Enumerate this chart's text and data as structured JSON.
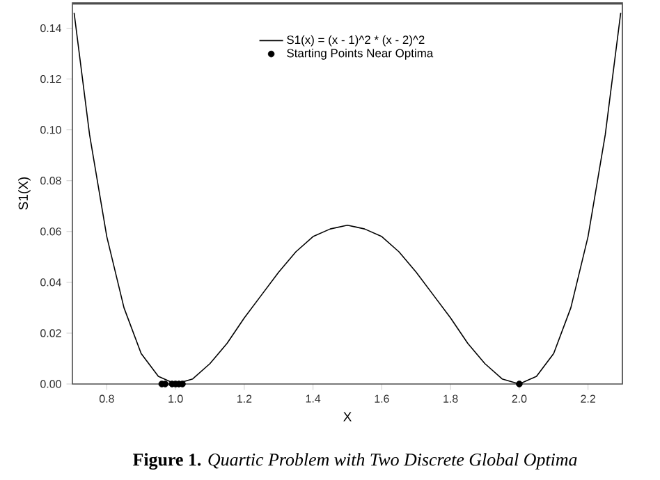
{
  "chart_data": {
    "type": "line",
    "xlabel": "X",
    "ylabel": "S1(X)",
    "annotations": [
      "**Figure 1.** *Quartic Problem with Two Discrete Global Optima*"
    ],
    "xlim": [
      0.7,
      2.3
    ],
    "ylim": [
      0,
      0.15
    ],
    "xticks": [
      {
        "value": 0.8,
        "label": "0.8"
      },
      {
        "value": 1.0,
        "label": "1.0"
      },
      {
        "value": 1.2,
        "label": "1.2"
      },
      {
        "value": 1.4,
        "label": "1.4"
      },
      {
        "value": 1.6,
        "label": "1.6"
      },
      {
        "value": 1.8,
        "label": "1.8"
      },
      {
        "value": 2.0,
        "label": "2.0"
      },
      {
        "value": 2.2,
        "label": "2.2"
      }
    ],
    "yticks": [
      {
        "value": 0,
        "label": "0.00"
      },
      {
        "value": 0.02,
        "label": "0.02"
      },
      {
        "value": 0.04,
        "label": "0.04"
      },
      {
        "value": 0.06,
        "label": "0.06"
      },
      {
        "value": 0.08,
        "label": "0.08"
      },
      {
        "value": 0.1,
        "label": "0.10"
      },
      {
        "value": 0.12,
        "label": "0.12"
      },
      {
        "value": 0.14,
        "label": "0.14"
      }
    ],
    "legend": "top",
    "grid": false,
    "series": [
      {
        "name": "S1(x) = (x - 1)^2 * (x - 2)^2",
        "color": "#000000",
        "marker": "none",
        "line_style": "solid",
        "x": [
          0.705,
          0.75,
          0.8,
          0.85,
          0.9,
          0.95,
          1.0,
          1.05,
          1.1,
          1.15,
          1.2,
          1.25,
          1.3,
          1.35,
          1.4,
          1.45,
          1.5,
          1.55,
          1.6,
          1.65,
          1.7,
          1.75,
          1.8,
          1.85,
          1.9,
          1.95,
          2.0,
          2.05,
          2.1,
          2.15,
          2.2,
          2.25,
          2.295
        ],
        "values": [
          0.146,
          0.098,
          0.058,
          0.03,
          0.012,
          0.003,
          0,
          0.002,
          0.008,
          0.016,
          0.026,
          0.035,
          0.044,
          0.052,
          0.058,
          0.061,
          0.0625,
          0.061,
          0.058,
          0.052,
          0.044,
          0.035,
          0.026,
          0.016,
          0.008,
          0.002,
          0,
          0.003,
          0.012,
          0.03,
          0.058,
          0.098,
          0.146
        ]
      },
      {
        "name": "Starting Points Near Optima",
        "type": "scatter",
        "color": "#000000",
        "marker": "circle",
        "x": [
          0.96,
          0.97,
          0.99,
          1.0,
          1.01,
          1.02,
          2.0
        ],
        "values": [
          0,
          0,
          0,
          0,
          0,
          0,
          0
        ]
      }
    ]
  }
}
